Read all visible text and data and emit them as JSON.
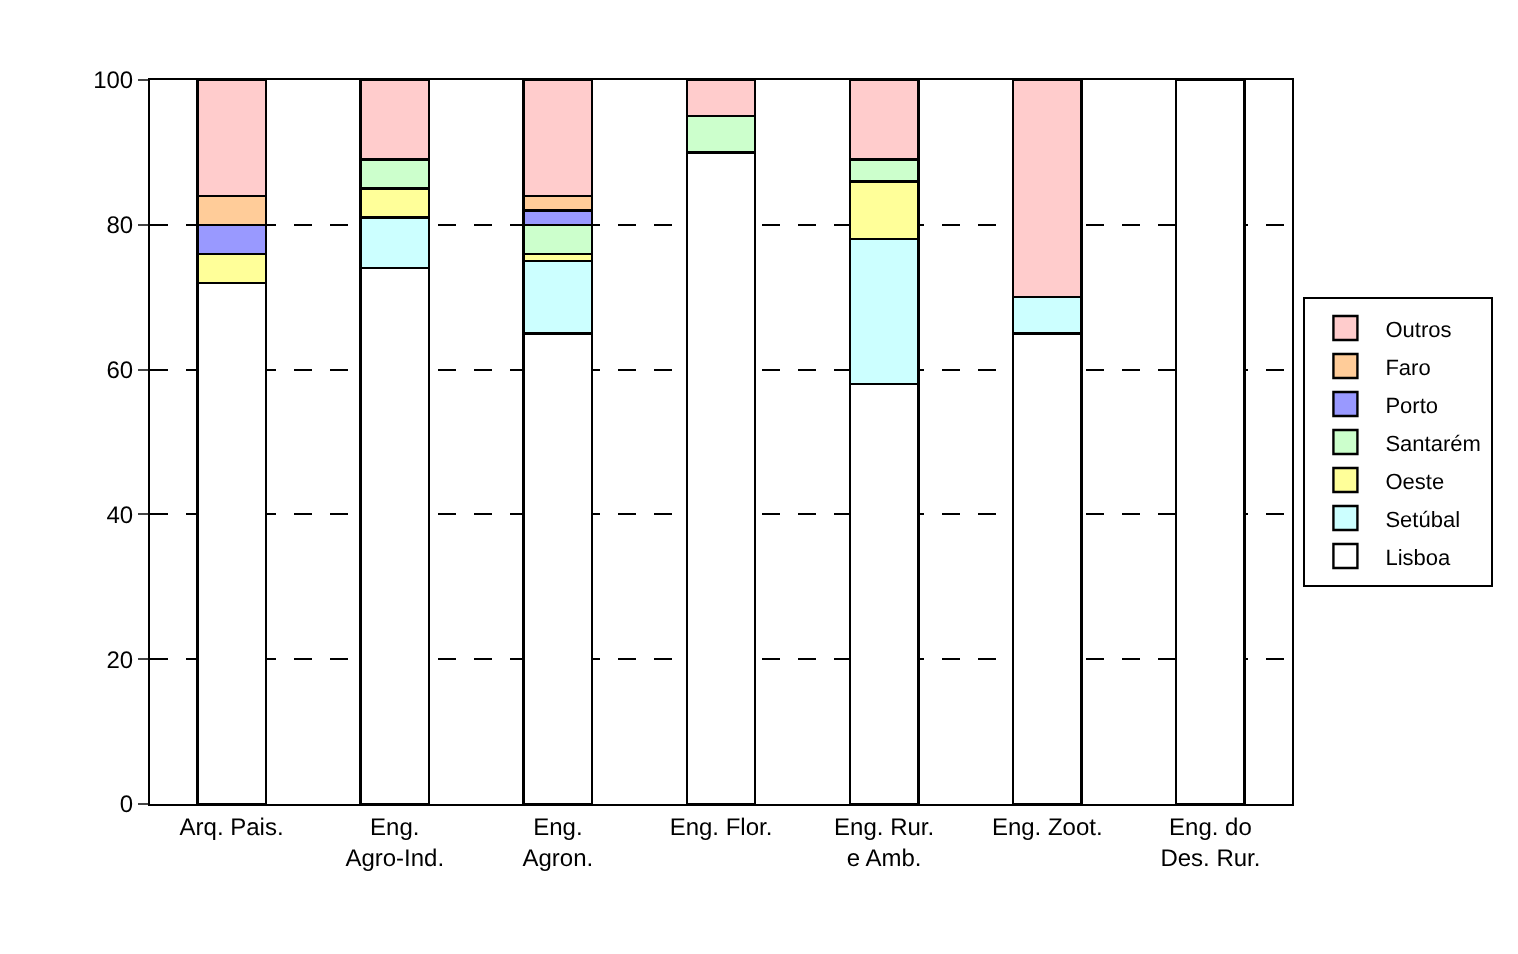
{
  "chart_data": {
    "type": "bar",
    "stacked": true,
    "categories": [
      "Arq. Pais.",
      "Eng.\nAgro-Ind.",
      "Eng.\nAgron.",
      "Eng. Flor.",
      "Eng. Rur.\ne Amb.",
      "Eng. Zoot.",
      "Eng. do\nDes. Rur."
    ],
    "series": [
      {
        "name": "Lisboa",
        "color": "#ffffff",
        "values": [
          72,
          74,
          65,
          90,
          58,
          65,
          100
        ]
      },
      {
        "name": "Setúbal",
        "color": "#ccffff",
        "values": [
          null,
          7,
          10,
          null,
          20,
          5,
          null
        ]
      },
      {
        "name": "Oeste",
        "color": "#ffff99",
        "values": [
          4,
          4,
          1,
          null,
          8,
          null,
          null
        ]
      },
      {
        "name": "Santarém",
        "color": "#ccffcc",
        "values": [
          null,
          4,
          4,
          5,
          3,
          null,
          null
        ]
      },
      {
        "name": "Porto",
        "color": "#9999ff",
        "values": [
          4,
          null,
          2,
          null,
          null,
          null,
          null
        ]
      },
      {
        "name": "Faro",
        "color": "#ffcc99",
        "values": [
          4,
          null,
          2,
          null,
          null,
          null,
          null
        ]
      },
      {
        "name": "Outros",
        "color": "#ffcccc",
        "values": [
          16,
          11,
          16,
          5,
          11,
          30,
          null
        ]
      }
    ],
    "ylim": [
      0,
      100
    ],
    "yticks": [
      0,
      20,
      40,
      60,
      80,
      100
    ],
    "grid": "y",
    "legend": "right"
  }
}
